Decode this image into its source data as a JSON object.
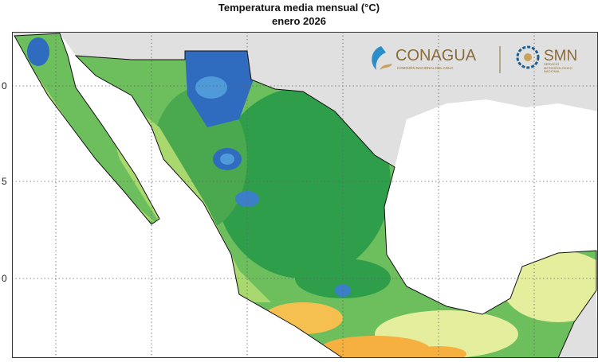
{
  "title": "Temperatura media mensual (°C)",
  "subtitle": "enero 2026",
  "logos": {
    "conagua": "CONAGUA",
    "conagua_sub": "COMISIÓN NACIONAL DEL AGUA",
    "smn": "SMN",
    "smn_sub": "SERVICIO METEOROLÓGICO NACIONAL"
  },
  "axis_labels": [
    "0",
    "5",
    "0"
  ]
}
